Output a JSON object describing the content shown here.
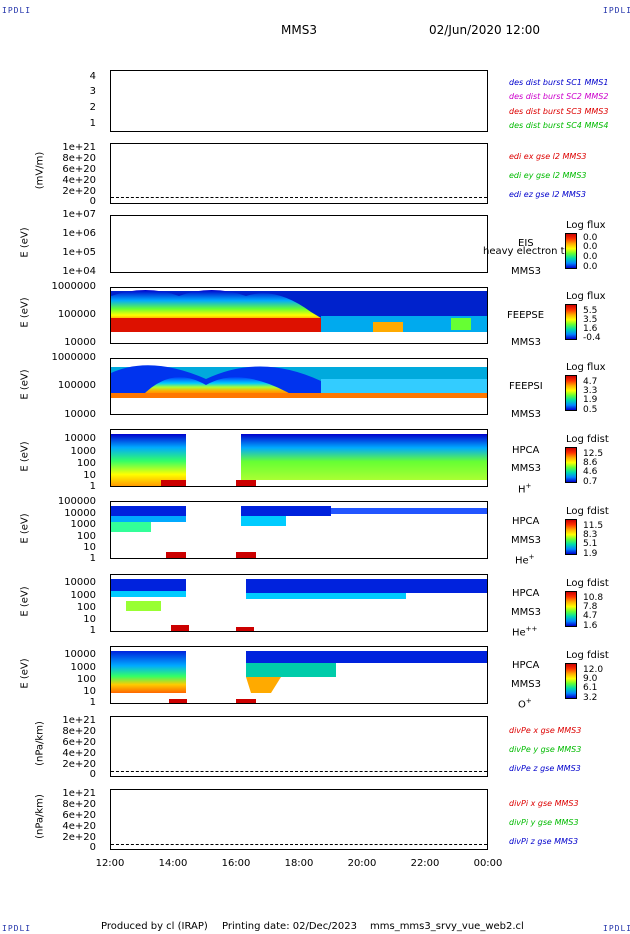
{
  "corner_label": "IPDLI",
  "header": {
    "spacecraft": "MMS3",
    "datetime": "02/Jun/2020 12:00"
  },
  "x_ticks": [
    "12:00",
    "14:00",
    "16:00",
    "18:00",
    "20:00",
    "22:00",
    "00:00"
  ],
  "footer": {
    "produced": "Produced by cl (IRAP)",
    "printed": "Printing date: 02/Dec/2023",
    "file": "mms_mms3_srvy_vue_web2.cl"
  },
  "panels": {
    "p1": {
      "ticks": [
        "4",
        "3",
        "2",
        "1"
      ],
      "legend": [
        {
          "text": "des dist burst SC1 MMS1",
          "color": "#0000cc"
        },
        {
          "text": "des dist burst SC2 MMS2",
          "color": "#cc00cc"
        },
        {
          "text": "des dist burst SC3 MMS3",
          "color": "#dd0000"
        },
        {
          "text": "des dist burst SC4 MMS4",
          "color": "#00bb00"
        }
      ]
    },
    "p2": {
      "ylabel": "(mV/m)",
      "ticks": [
        "1e+21",
        "8e+20",
        "6e+20",
        "4e+20",
        "2e+20",
        "0"
      ],
      "legend": [
        {
          "text": "edi ex gse l2 MMS3",
          "color": "#dd0000"
        },
        {
          "text": "edi ey gse l2 MMS3",
          "color": "#00bb00"
        },
        {
          "text": "edi ez gse l2 MMS3",
          "color": "#0000cc"
        }
      ]
    },
    "p3": {
      "ylabel": "E (eV)",
      "ticks": [
        "1e+07",
        "1e+06",
        "1e+05",
        "1e+04"
      ],
      "side1": "EIS",
      "side2": "MMS3",
      "overlay": "heavy electron to",
      "cb_title": "Log flux",
      "cb_values": [
        "0.0",
        "0.0",
        "0.0",
        "0.0"
      ]
    },
    "p4": {
      "ylabel": "E (eV)",
      "ticks": [
        "1000000",
        "100000",
        "10000"
      ],
      "side1": "FEEPSE",
      "side2": "MMS3",
      "cb_title": "Log flux",
      "cb_values": [
        "5.5",
        "3.5",
        "1.6",
        "-0.4"
      ]
    },
    "p5": {
      "ylabel": "E (eV)",
      "ticks": [
        "1000000",
        "100000",
        "10000"
      ],
      "side1": "FEEPSI",
      "side2": "MMS3",
      "cb_title": "Log flux",
      "cb_values": [
        "4.7",
        "3.3",
        "1.9",
        "0.5"
      ]
    },
    "p6": {
      "ylabel": "E (eV)",
      "ticks": [
        "10000",
        "1000",
        "100",
        "10",
        "1"
      ],
      "side1": "HPCA",
      "side2": "MMS3",
      "species": "H",
      "sup": "+",
      "cb_title": "Log fdist",
      "cb_values": [
        "12.5",
        "8.6",
        "4.6",
        "0.7"
      ]
    },
    "p7": {
      "ylabel": "E (eV)",
      "ticks": [
        "100000",
        "10000",
        "1000",
        "100",
        "10",
        "1"
      ],
      "side1": "HPCA",
      "side2": "MMS3",
      "species": "He",
      "sup": "+",
      "cb_title": "Log fdist",
      "cb_values": [
        "11.5",
        "8.3",
        "5.1",
        "1.9"
      ]
    },
    "p8": {
      "ylabel": "E (eV)",
      "ticks": [
        "10000",
        "1000",
        "100",
        "10",
        "1"
      ],
      "side1": "HPCA",
      "side2": "MMS3",
      "species": "He",
      "sup": "++",
      "cb_title": "Log fdist",
      "cb_values": [
        "10.8",
        "7.8",
        "4.7",
        "1.6"
      ]
    },
    "p9": {
      "ylabel": "E (eV)",
      "ticks": [
        "10000",
        "1000",
        "100",
        "10",
        "1"
      ],
      "side1": "HPCA",
      "side2": "MMS3",
      "species": "O",
      "sup": "+",
      "cb_title": "Log fdist",
      "cb_values": [
        "12.0",
        "9.0",
        "6.1",
        "3.2"
      ]
    },
    "p10": {
      "ylabel": "(nPa/km)",
      "ticks": [
        "1e+21",
        "8e+20",
        "6e+20",
        "4e+20",
        "2e+20",
        "0"
      ],
      "legend": [
        {
          "text": "divPe x gse MMS3",
          "color": "#dd0000"
        },
        {
          "text": "divPe y gse MMS3",
          "color": "#00bb00"
        },
        {
          "text": "divPe z gse MMS3",
          "color": "#0000cc"
        }
      ]
    },
    "p11": {
      "ylabel": "(nPa/km)",
      "ticks": [
        "1e+21",
        "8e+20",
        "6e+20",
        "4e+20",
        "2e+20",
        "0"
      ],
      "legend": [
        {
          "text": "divPi x gse MMS3",
          "color": "#dd0000"
        },
        {
          "text": "divPi y gse MMS3",
          "color": "#00bb00"
        },
        {
          "text": "divPi z gse MMS3",
          "color": "#0000cc"
        }
      ]
    }
  }
}
